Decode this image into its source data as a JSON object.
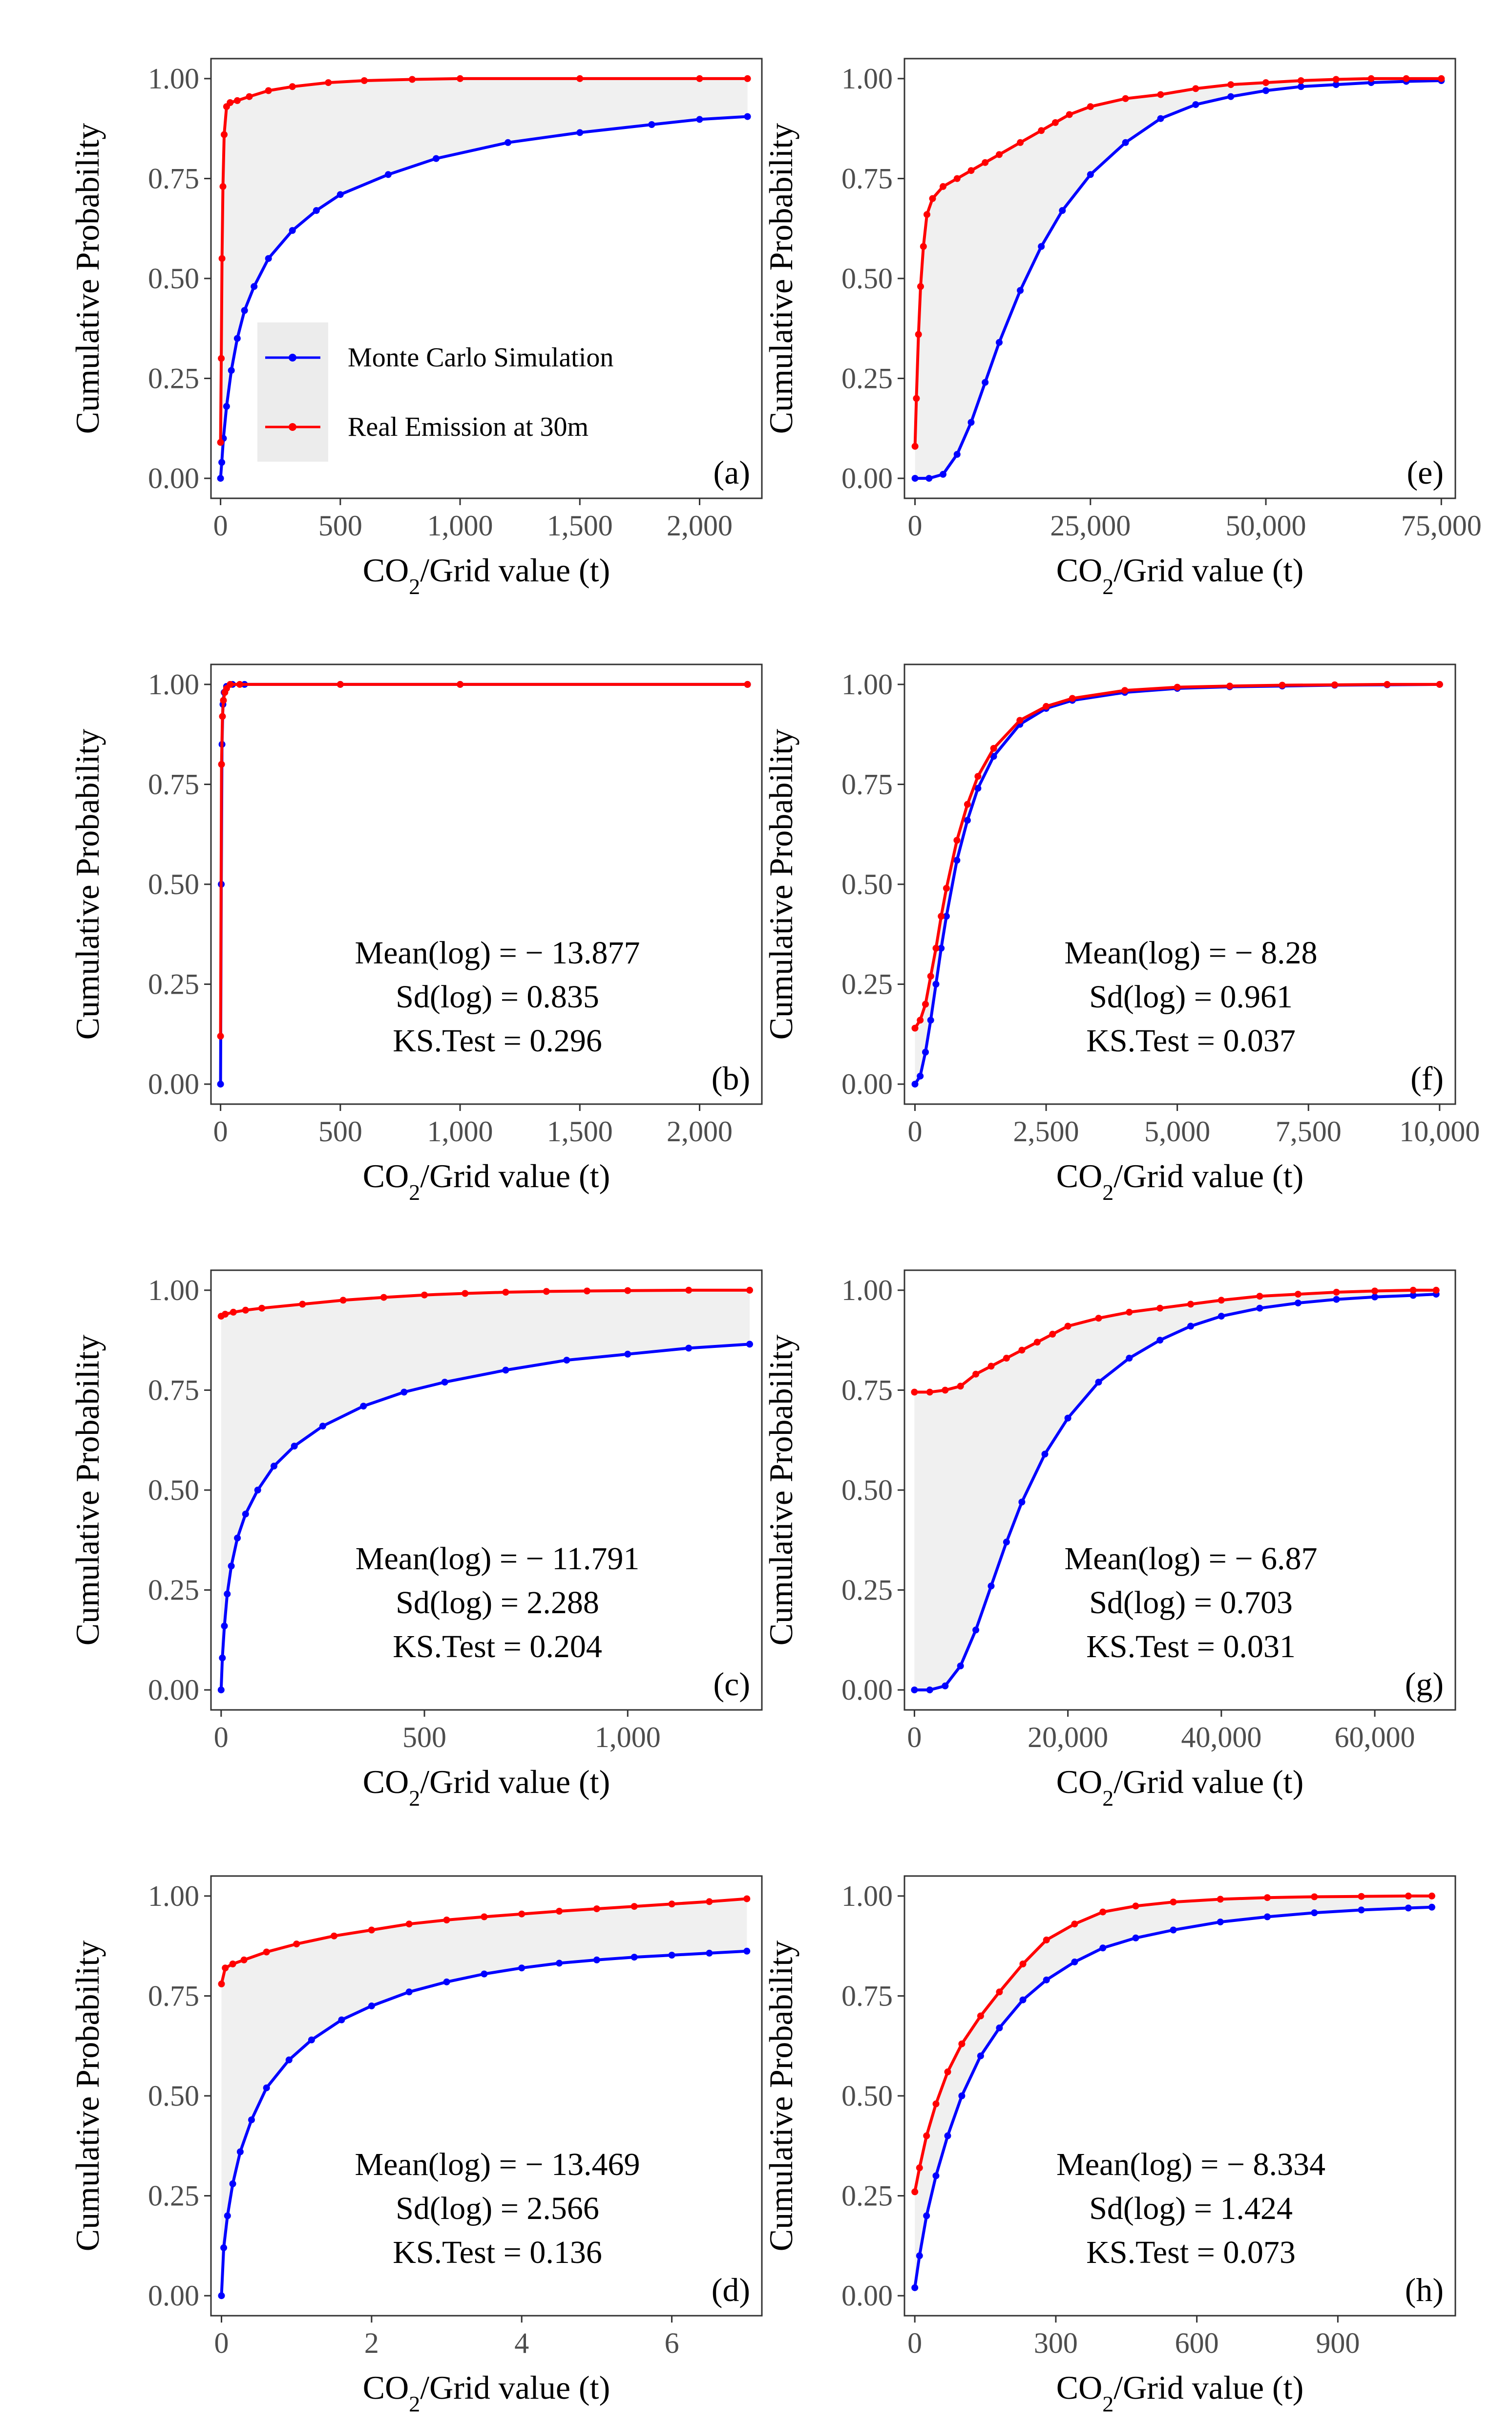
{
  "figure": {
    "legend": {
      "entries": [
        {
          "label": "Monte Carlo Simulation",
          "color": "#0000ff"
        },
        {
          "label": "Real Emission at 30m",
          "color": "#ff0000"
        }
      ]
    }
  },
  "colors": {
    "simulation": "#0000ff",
    "real": "#ff0000",
    "fill": "#f0f0f0",
    "frame": "#333333"
  },
  "chart_data": [
    {
      "id": "a",
      "type": "line",
      "panel_label": "(a)",
      "xlabel": "CO2/Grid value (t)",
      "ylabel": "Cumulative Probability",
      "xlim": [
        -40,
        2260
      ],
      "ylim": [
        0,
        1
      ],
      "xticks": [
        0,
        500,
        1000,
        1500,
        2000
      ],
      "xtick_labels": [
        "0",
        "500",
        "1,000",
        "1,500",
        "2,000"
      ],
      "yticks": [
        0,
        0.25,
        0.5,
        0.75,
        1
      ],
      "ytick_labels": [
        "0.00",
        "0.25",
        "0.50",
        "0.75",
        "1.00"
      ],
      "series": [
        {
          "name": "Monte Carlo Simulation",
          "color": "#0000ff",
          "x": [
            0,
            5,
            12,
            25,
            45,
            70,
            100,
            140,
            200,
            300,
            400,
            500,
            700,
            900,
            1200,
            1500,
            1800,
            2000,
            2200
          ],
          "y": [
            0,
            0.04,
            0.1,
            0.18,
            0.27,
            0.35,
            0.42,
            0.48,
            0.55,
            0.62,
            0.67,
            0.71,
            0.76,
            0.8,
            0.84,
            0.865,
            0.885,
            0.898,
            0.905
          ]
        },
        {
          "name": "Real Emission at 30m",
          "color": "#ff0000",
          "x": [
            0,
            3,
            6,
            10,
            15,
            25,
            40,
            70,
            120,
            200,
            300,
            450,
            600,
            800,
            1000,
            1500,
            2000,
            2200
          ],
          "y": [
            0.09,
            0.3,
            0.55,
            0.73,
            0.86,
            0.93,
            0.94,
            0.945,
            0.955,
            0.97,
            0.98,
            0.99,
            0.995,
            0.998,
            1,
            1,
            1,
            1
          ]
        }
      ],
      "stats": null
    },
    {
      "id": "e",
      "type": "line",
      "panel_label": "(e)",
      "xlabel": "CO2/Grid value (t)",
      "ylabel": "Cumulative Probability",
      "xlim": [
        -1500,
        77000
      ],
      "ylim": [
        0,
        1
      ],
      "xticks": [
        0,
        25000,
        50000,
        75000
      ],
      "xtick_labels": [
        "0",
        "25,000",
        "50,000",
        "75,000"
      ],
      "yticks": [
        0,
        0.25,
        0.5,
        0.75,
        1
      ],
      "ytick_labels": [
        "0.00",
        "0.25",
        "0.50",
        "0.75",
        "1.00"
      ],
      "series": [
        {
          "name": "Monte Carlo Simulation",
          "color": "#0000ff",
          "x": [
            0,
            2000,
            4000,
            6000,
            8000,
            10000,
            12000,
            15000,
            18000,
            21000,
            25000,
            30000,
            35000,
            40000,
            45000,
            50000,
            55000,
            60000,
            65000,
            70000,
            75000
          ],
          "y": [
            0,
            0,
            0.01,
            0.06,
            0.14,
            0.24,
            0.34,
            0.47,
            0.58,
            0.67,
            0.76,
            0.84,
            0.9,
            0.935,
            0.955,
            0.97,
            0.98,
            0.985,
            0.99,
            0.993,
            0.995
          ]
        },
        {
          "name": "Real Emission at 30m",
          "color": "#ff0000",
          "x": [
            0,
            200,
            500,
            800,
            1200,
            1700,
            2500,
            4000,
            6000,
            8000,
            10000,
            12000,
            15000,
            18000,
            20000,
            22000,
            25000,
            30000,
            35000,
            40000,
            45000,
            50000,
            55000,
            60000,
            65000,
            70000,
            75000
          ],
          "y": [
            0.08,
            0.2,
            0.36,
            0.48,
            0.58,
            0.66,
            0.7,
            0.73,
            0.75,
            0.77,
            0.79,
            0.81,
            0.84,
            0.87,
            0.89,
            0.91,
            0.93,
            0.95,
            0.96,
            0.975,
            0.985,
            0.99,
            0.995,
            0.998,
            1,
            1,
            1
          ]
        }
      ],
      "stats": null
    },
    {
      "id": "b",
      "type": "line",
      "panel_label": "(b)",
      "xlabel": "CO2/Grid value (t)",
      "ylabel": "Cumulative Probability",
      "xlim": [
        -40,
        2260
      ],
      "ylim": [
        0,
        1
      ],
      "xticks": [
        0,
        500,
        1000,
        1500,
        2000
      ],
      "xtick_labels": [
        "0",
        "500",
        "1,000",
        "1,500",
        "2,000"
      ],
      "yticks": [
        0,
        0.25,
        0.5,
        0.75,
        1
      ],
      "ytick_labels": [
        "0.00",
        "0.25",
        "0.50",
        "0.75",
        "1.00"
      ],
      "series": [
        {
          "name": "Monte Carlo Simulation",
          "color": "#0000ff",
          "x": [
            0,
            3,
            6,
            10,
            15,
            25,
            50,
            100,
            500,
            1000,
            2200
          ],
          "y": [
            0,
            0.5,
            0.85,
            0.95,
            0.98,
            0.995,
            1,
            1,
            1,
            1,
            1
          ]
        },
        {
          "name": "Real Emission at 30m",
          "color": "#ff0000",
          "x": [
            0,
            4,
            8,
            12,
            18,
            25,
            40,
            80,
            500,
            1000,
            2200
          ],
          "y": [
            0.12,
            0.8,
            0.92,
            0.96,
            0.98,
            0.99,
            1,
            1,
            1,
            1,
            1
          ]
        }
      ],
      "stats": [
        "Mean(log) = − 13.877",
        "Sd(log) = 0.835",
        "KS.Test = 0.296"
      ]
    },
    {
      "id": "f",
      "type": "line",
      "panel_label": "(f)",
      "xlabel": "CO2/Grid value (t)",
      "ylabel": "Cumulative Probability",
      "xlim": [
        -200,
        10300
      ],
      "ylim": [
        0,
        1
      ],
      "xticks": [
        0,
        2500,
        5000,
        7500,
        10000
      ],
      "xtick_labels": [
        "0",
        "2,500",
        "5,000",
        "7,500",
        "10,000"
      ],
      "yticks": [
        0,
        0.25,
        0.5,
        0.75,
        1
      ],
      "ytick_labels": [
        "0.00",
        "0.25",
        "0.50",
        "0.75",
        "1.00"
      ],
      "series": [
        {
          "name": "Monte Carlo Simulation",
          "color": "#0000ff",
          "x": [
            0,
            100,
            200,
            300,
            400,
            500,
            600,
            800,
            1000,
            1200,
            1500,
            2000,
            2500,
            3000,
            4000,
            5000,
            6000,
            7000,
            8000,
            9000,
            10000
          ],
          "y": [
            0,
            0.02,
            0.08,
            0.16,
            0.25,
            0.34,
            0.42,
            0.56,
            0.66,
            0.74,
            0.82,
            0.9,
            0.94,
            0.96,
            0.98,
            0.99,
            0.994,
            0.996,
            0.998,
            0.999,
            1
          ]
        },
        {
          "name": "Real Emission at 30m",
          "color": "#ff0000",
          "x": [
            0,
            100,
            200,
            300,
            400,
            500,
            600,
            800,
            1000,
            1200,
            1500,
            2000,
            2500,
            3000,
            4000,
            5000,
            6000,
            7000,
            8000,
            9000,
            10000
          ],
          "y": [
            0.14,
            0.16,
            0.2,
            0.27,
            0.34,
            0.42,
            0.49,
            0.61,
            0.7,
            0.77,
            0.84,
            0.91,
            0.945,
            0.965,
            0.985,
            0.993,
            0.996,
            0.998,
            0.999,
            1,
            1
          ]
        }
      ],
      "stats": [
        "Mean(log) = − 8.28",
        "Sd(log) = 0.961",
        "KS.Test = 0.037"
      ]
    },
    {
      "id": "c",
      "type": "line",
      "panel_label": "(c)",
      "xlabel": "CO2/Grid value (t)",
      "ylabel": "Cumulative Probability",
      "xlim": [
        -25,
        1330
      ],
      "ylim": [
        0,
        1
      ],
      "xticks": [
        0,
        500,
        1000
      ],
      "xtick_labels": [
        "0",
        "500",
        "1,000"
      ],
      "yticks": [
        0,
        0.25,
        0.5,
        0.75,
        1
      ],
      "ytick_labels": [
        "0.00",
        "0.25",
        "0.50",
        "0.75",
        "1.00"
      ],
      "series": [
        {
          "name": "Monte Carlo Simulation",
          "color": "#0000ff",
          "x": [
            0,
            3,
            8,
            15,
            25,
            40,
            60,
            90,
            130,
            180,
            250,
            350,
            450,
            550,
            700,
            850,
            1000,
            1150,
            1300
          ],
          "y": [
            0,
            0.08,
            0.16,
            0.24,
            0.31,
            0.38,
            0.44,
            0.5,
            0.56,
            0.61,
            0.66,
            0.71,
            0.745,
            0.77,
            0.8,
            0.825,
            0.84,
            0.855,
            0.865
          ]
        },
        {
          "name": "Real Emission at 30m",
          "color": "#ff0000",
          "x": [
            0,
            10,
            30,
            60,
            100,
            200,
            300,
            400,
            500,
            600,
            700,
            800,
            900,
            1000,
            1150,
            1300
          ],
          "y": [
            0.935,
            0.94,
            0.945,
            0.95,
            0.955,
            0.965,
            0.975,
            0.982,
            0.988,
            0.992,
            0.995,
            0.997,
            0.998,
            0.999,
            1,
            1
          ]
        }
      ],
      "stats": [
        "Mean(log) = − 11.791",
        "Sd(log) = 2.288",
        "KS.Test = 0.204"
      ]
    },
    {
      "id": "g",
      "type": "line",
      "panel_label": "(g)",
      "xlabel": "CO2/Grid value (t)",
      "ylabel": "Cumulative Probability",
      "xlim": [
        -1300,
        70500
      ],
      "ylim": [
        0,
        1
      ],
      "xticks": [
        0,
        20000,
        40000,
        60000
      ],
      "xtick_labels": [
        "0",
        "20,000",
        "40,000",
        "60,000"
      ],
      "yticks": [
        0,
        0.25,
        0.5,
        0.75,
        1
      ],
      "ytick_labels": [
        "0.00",
        "0.25",
        "0.50",
        "0.75",
        "1.00"
      ],
      "series": [
        {
          "name": "Monte Carlo Simulation",
          "color": "#0000ff",
          "x": [
            0,
            2000,
            4000,
            6000,
            8000,
            10000,
            12000,
            14000,
            17000,
            20000,
            24000,
            28000,
            32000,
            36000,
            40000,
            45000,
            50000,
            55000,
            60000,
            65000,
            68000
          ],
          "y": [
            0,
            0,
            0.01,
            0.06,
            0.15,
            0.26,
            0.37,
            0.47,
            0.59,
            0.68,
            0.77,
            0.83,
            0.875,
            0.91,
            0.935,
            0.955,
            0.968,
            0.977,
            0.983,
            0.987,
            0.99
          ]
        },
        {
          "name": "Real Emission at 30m",
          "color": "#ff0000",
          "x": [
            0,
            2000,
            4000,
            6000,
            8000,
            10000,
            12000,
            14000,
            16000,
            18000,
            20000,
            24000,
            28000,
            32000,
            36000,
            40000,
            45000,
            50000,
            55000,
            60000,
            65000,
            68000
          ],
          "y": [
            0.745,
            0.745,
            0.75,
            0.76,
            0.79,
            0.81,
            0.83,
            0.85,
            0.87,
            0.89,
            0.91,
            0.93,
            0.945,
            0.955,
            0.965,
            0.975,
            0.985,
            0.99,
            0.995,
            0.998,
            1,
            1
          ]
        }
      ],
      "stats": [
        "Mean(log) = − 6.87",
        "Sd(log) = 0.703",
        "KS.Test = 0.031"
      ]
    },
    {
      "id": "d",
      "type": "line",
      "panel_label": "(d)",
      "xlabel": "CO2/Grid value (t)",
      "ylabel": "Cumulative Probability",
      "xlim": [
        -0.14,
        7.2
      ],
      "ylim": [
        0,
        1
      ],
      "xticks": [
        0,
        2,
        4,
        6
      ],
      "xtick_labels": [
        "0",
        "2",
        "4",
        "6"
      ],
      "yticks": [
        0,
        0.25,
        0.5,
        0.75,
        1
      ],
      "ytick_labels": [
        "0.00",
        "0.25",
        "0.50",
        "0.75",
        "1.00"
      ],
      "series": [
        {
          "name": "Monte Carlo Simulation",
          "color": "#0000ff",
          "x": [
            0,
            0.03,
            0.08,
            0.15,
            0.25,
            0.4,
            0.6,
            0.9,
            1.2,
            1.6,
            2,
            2.5,
            3,
            3.5,
            4,
            4.5,
            5,
            5.5,
            6,
            6.5,
            7
          ],
          "y": [
            0,
            0.12,
            0.2,
            0.28,
            0.36,
            0.44,
            0.52,
            0.59,
            0.64,
            0.69,
            0.725,
            0.76,
            0.785,
            0.805,
            0.82,
            0.832,
            0.84,
            0.847,
            0.852,
            0.857,
            0.862
          ]
        },
        {
          "name": "Real Emission at 30m",
          "color": "#ff0000",
          "x": [
            0,
            0.05,
            0.15,
            0.3,
            0.6,
            1,
            1.5,
            2,
            2.5,
            3,
            3.5,
            4,
            4.5,
            5,
            5.5,
            6,
            6.5,
            7
          ],
          "y": [
            0.78,
            0.82,
            0.83,
            0.84,
            0.86,
            0.88,
            0.9,
            0.915,
            0.93,
            0.94,
            0.948,
            0.955,
            0.962,
            0.968,
            0.974,
            0.98,
            0.986,
            0.993
          ]
        }
      ],
      "stats": [
        "Mean(log) = − 13.469",
        "Sd(log) = 2.566",
        "KS.Test = 0.136"
      ]
    },
    {
      "id": "h",
      "type": "line",
      "panel_label": "(h)",
      "xlabel": "CO2/Grid value (t)",
      "ylabel": "Cumulative Probability",
      "xlim": [
        -22,
        1150
      ],
      "ylim": [
        0,
        1
      ],
      "xticks": [
        0,
        300,
        600,
        900
      ],
      "xtick_labels": [
        "0",
        "300",
        "600",
        "900"
      ],
      "yticks": [
        0,
        0.25,
        0.5,
        0.75,
        1
      ],
      "ytick_labels": [
        "0.00",
        "0.25",
        "0.50",
        "0.75",
        "1.00"
      ],
      "series": [
        {
          "name": "Monte Carlo Simulation",
          "color": "#0000ff",
          "x": [
            0,
            10,
            25,
            45,
            70,
            100,
            140,
            180,
            230,
            280,
            340,
            400,
            470,
            550,
            650,
            750,
            850,
            950,
            1050,
            1100
          ],
          "y": [
            0.02,
            0.1,
            0.2,
            0.3,
            0.4,
            0.5,
            0.6,
            0.67,
            0.74,
            0.79,
            0.835,
            0.87,
            0.895,
            0.915,
            0.935,
            0.948,
            0.958,
            0.965,
            0.97,
            0.972
          ]
        },
        {
          "name": "Real Emission at 30m",
          "color": "#ff0000",
          "x": [
            0,
            10,
            25,
            45,
            70,
            100,
            140,
            180,
            230,
            280,
            340,
            400,
            470,
            550,
            650,
            750,
            850,
            950,
            1050,
            1100
          ],
          "y": [
            0.26,
            0.32,
            0.4,
            0.48,
            0.56,
            0.63,
            0.7,
            0.76,
            0.83,
            0.89,
            0.93,
            0.96,
            0.975,
            0.985,
            0.992,
            0.996,
            0.998,
            0.999,
            1,
            1
          ]
        }
      ],
      "stats": [
        "Mean(log) = − 8.334",
        "Sd(log) = 1.424",
        "KS.Test = 0.073"
      ]
    }
  ]
}
